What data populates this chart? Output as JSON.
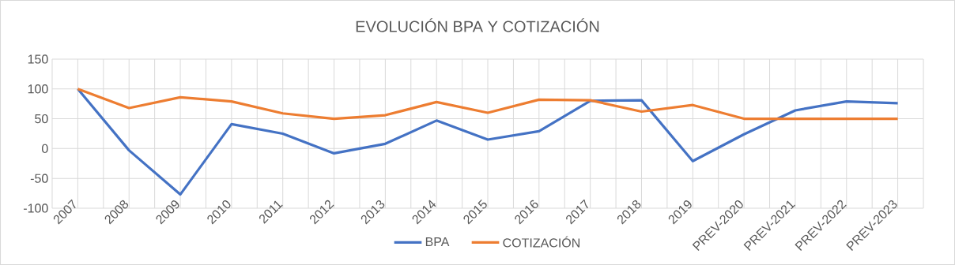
{
  "chart_data": {
    "type": "line",
    "title": "EVOLUCIÓN BPA Y COTIZACIÓN",
    "categories": [
      "2007",
      "2008",
      "2009",
      "2010",
      "2011",
      "2012",
      "2013",
      "2014",
      "2015",
      "2016",
      "2017",
      "2018",
      "2019",
      "PREV-2020",
      "PREV-2021",
      "PREV-2022",
      "PREV-2023"
    ],
    "series": [
      {
        "name": "BPA",
        "color": "#4472c4",
        "values": [
          100,
          -3,
          -77,
          41,
          25,
          -8,
          8,
          47,
          15,
          29,
          80,
          81,
          -21,
          24,
          64,
          79,
          76
        ]
      },
      {
        "name": "COTIZACIÓN",
        "color": "#ed7d31",
        "values": [
          100,
          68,
          86,
          79,
          59,
          50,
          56,
          78,
          60,
          82,
          81,
          62,
          73,
          50,
          50,
          50,
          50
        ]
      }
    ],
    "ylim": [
      -100,
      150
    ],
    "yticks": [
      -100,
      -50,
      0,
      50,
      100,
      150
    ],
    "grid": true,
    "legend": "bottom",
    "marker": "none",
    "line_style": "solid"
  }
}
